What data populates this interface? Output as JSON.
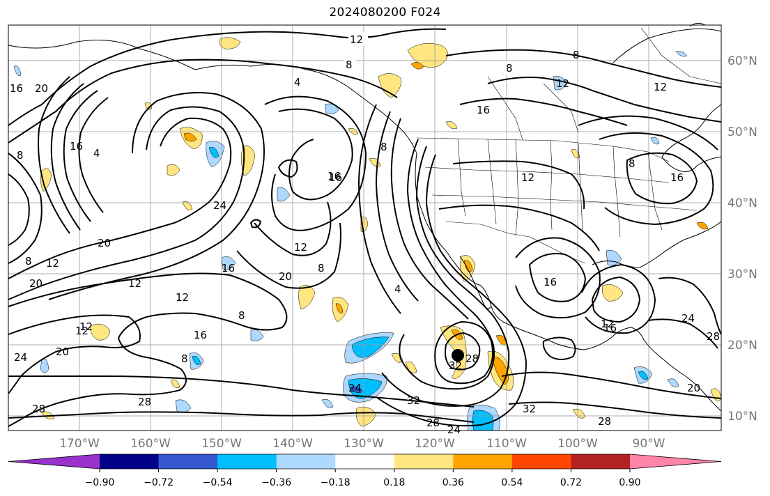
{
  "title": "2024080200 F024",
  "lat_labels": [
    "60°N",
    "50°N",
    "40°N",
    "30°N",
    "20°N",
    "10°N"
  ],
  "lon_labels": [
    "170°W",
    "160°W",
    "150°W",
    "140°W",
    "130°W",
    "120°W",
    "110°W",
    "100°W",
    "90°W"
  ],
  "colorbar": {
    "colors": [
      "#9932cc",
      "#00008b",
      "#3457cf",
      "#00bfff",
      "#add8ff",
      "#ffffff",
      "#ffe680",
      "#ffa500",
      "#ff4500",
      "#b22222",
      "#ff85a8"
    ],
    "tick_labels": [
      "−0.90",
      "−0.72",
      "−0.54",
      "−0.36",
      "−0.18",
      "0.18",
      "0.36",
      "0.54",
      "0.72",
      "0.90"
    ]
  },
  "contour_labels": [
    "12",
    "8",
    "8",
    "4",
    "16",
    "12",
    "20",
    "16",
    "8",
    "16",
    "4",
    "8",
    "16",
    "12",
    "24",
    "16",
    "20",
    "12",
    "12",
    "16",
    "20",
    "8",
    "12",
    "12",
    "4",
    "8",
    "12",
    "16",
    "8",
    "24",
    "28",
    "20",
    "20",
    "16",
    "8",
    "12",
    "8",
    "28",
    "24",
    "32",
    "28",
    "28",
    "32",
    "24",
    "32",
    "28",
    "28",
    "16",
    "16",
    "12",
    "20",
    "24",
    "12",
    "8"
  ],
  "marker": "hurricane-center",
  "colors": {
    "contour": "#000000",
    "grid": "#999999",
    "coast": "#000000",
    "marker": "#000000"
  }
}
